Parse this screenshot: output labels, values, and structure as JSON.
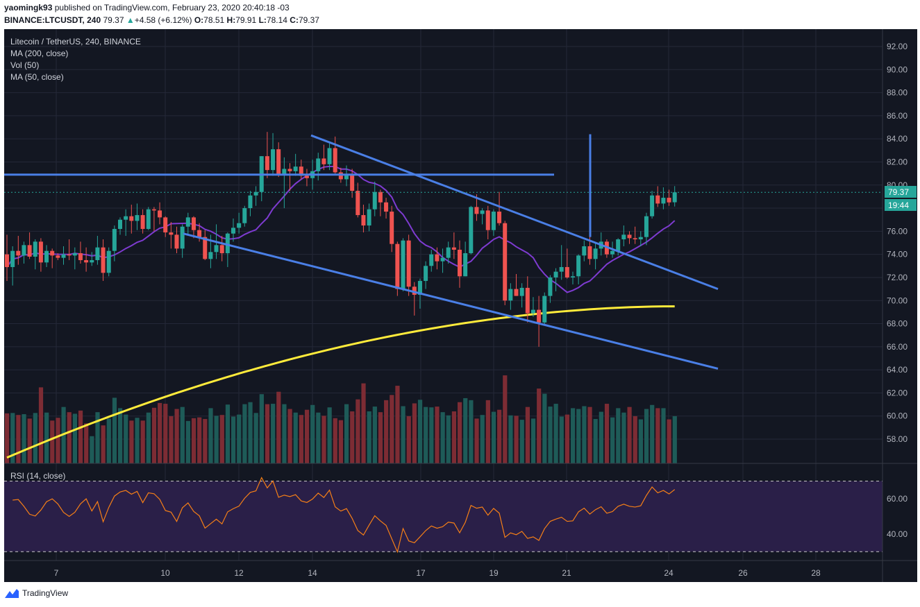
{
  "header": {
    "author": "yaomingk93",
    "published_text": "published on TradingView.com, February 23, 2020 20:40:18 -03",
    "symbol": "BINANCE:LTCUSDT, 240",
    "last": "79.37",
    "change": "+4.58 (+6.12%)",
    "o_label": "O:",
    "o_val": "78.51",
    "h_label": "H:",
    "h_val": "79.91",
    "l_label": "L:",
    "l_val": "78.14",
    "c_label": "C:",
    "c_val": "79.37"
  },
  "legend": {
    "title": "Litecoin / TetherUS, 240, BINANCE",
    "ma200": "MA (200, close)",
    "vol": "Vol (50)",
    "ma50": "MA (50, close)",
    "rsi": "RSI (14, close)"
  },
  "price_badge": "79.37",
  "timer_badge": "19:44",
  "footer": {
    "brand": "TradingView"
  },
  "colors": {
    "background": "#131722",
    "up": "#26a69a",
    "down": "#ef5350",
    "ma200": "#ffeb3b",
    "ma50": "#7e3bd1",
    "trendline": "#4a7fe6",
    "rsi_line": "#f57f17",
    "rsi_band": "#2a1f48"
  },
  "chart_data": {
    "type": "candlestick",
    "symbol": "LTCUSDT",
    "interval": "240",
    "x_ticks": [
      "7",
      "10",
      "12",
      "14",
      "17",
      "19",
      "21",
      "24",
      "26",
      "28"
    ],
    "price_ticks": [
      "92.00",
      "90.00",
      "88.00",
      "86.00",
      "84.00",
      "82.00",
      "80.00",
      "78.00",
      "76.00",
      "74.00",
      "72.00",
      "70.00",
      "68.00",
      "66.00",
      "64.00",
      "62.00",
      "60.00",
      "58.00"
    ],
    "rsi_ticks": [
      "60.00",
      "40.00"
    ],
    "ylim": [
      55.9,
      93.5
    ],
    "rsi_ylim": [
      25,
      80
    ],
    "rsi_levels": [
      70,
      30
    ],
    "candles": [
      [
        74.0,
        75.7,
        71.7,
        72.9,
        1250
      ],
      [
        72.9,
        74.7,
        71.3,
        74.3,
        1260
      ],
      [
        74.3,
        75.6,
        73.1,
        73.9,
        1210
      ],
      [
        73.9,
        75.1,
        73.2,
        74.8,
        1230
      ],
      [
        74.8,
        75.9,
        73.6,
        73.8,
        1120
      ],
      [
        73.8,
        75.3,
        72.7,
        75.1,
        1260
      ],
      [
        75.1,
        75.4,
        72.5,
        73.3,
        1900
      ],
      [
        73.3,
        74.8,
        72.9,
        74.3,
        1270
      ],
      [
        74.3,
        74.5,
        72.8,
        73.9,
        1070
      ],
      [
        73.9,
        74.1,
        73.5,
        73.7,
        1140
      ],
      [
        73.7,
        74.7,
        73.1,
        74.0,
        1410
      ],
      [
        74.0,
        75.3,
        73.5,
        73.9,
        1280
      ],
      [
        73.9,
        74.6,
        72.7,
        74.1,
        1240
      ],
      [
        74.1,
        75.1,
        73.2,
        73.5,
        1320
      ],
      [
        73.5,
        74.6,
        72.5,
        73.3,
        1000
      ],
      [
        73.3,
        74.2,
        73.0,
        73.5,
        680
      ],
      [
        73.5,
        75.6,
        73.1,
        74.6,
        1280
      ],
      [
        74.6,
        75.3,
        71.7,
        72.4,
        950
      ],
      [
        72.4,
        74.6,
        72.1,
        74.3,
        1120
      ],
      [
        74.3,
        76.5,
        73.4,
        76.2,
        1640
      ],
      [
        76.2,
        77.2,
        75.7,
        77.0,
        1380
      ],
      [
        77.0,
        77.9,
        75.6,
        77.3,
        1220
      ],
      [
        77.3,
        78.3,
        75.8,
        76.9,
        1070
      ],
      [
        76.9,
        78.4,
        76.1,
        77.4,
        1140
      ],
      [
        77.4,
        77.9,
        75.8,
        76.2,
        1070
      ],
      [
        76.2,
        78.1,
        76.1,
        77.9,
        1270
      ],
      [
        77.9,
        78.1,
        76.0,
        77.8,
        1390
      ],
      [
        77.8,
        78.5,
        76.6,
        77.2,
        1510
      ],
      [
        77.2,
        77.3,
        75.5,
        75.9,
        1490
      ],
      [
        75.9,
        76.8,
        74.5,
        75.7,
        1180
      ],
      [
        75.7,
        76.4,
        74.1,
        74.5,
        1360
      ],
      [
        74.5,
        76.6,
        73.7,
        76.4,
        1410
      ],
      [
        76.4,
        77.6,
        75.7,
        77.2,
        1060
      ],
      [
        77.2,
        77.3,
        75.4,
        76.1,
        1130
      ],
      [
        76.1,
        76.7,
        75.1,
        75.5,
        1150
      ],
      [
        75.5,
        76.1,
        73.5,
        73.6,
        1110
      ],
      [
        73.6,
        75.7,
        72.8,
        74.2,
        1380
      ],
      [
        74.2,
        76.6,
        73.6,
        74.8,
        1190
      ],
      [
        74.8,
        75.6,
        73.4,
        74.1,
        1210
      ],
      [
        74.1,
        75.9,
        72.9,
        75.8,
        1470
      ],
      [
        75.8,
        77.1,
        75.1,
        76.3,
        1170
      ],
      [
        76.3,
        77.6,
        75.8,
        76.7,
        1220
      ],
      [
        76.7,
        78.2,
        76.4,
        78.0,
        1480
      ],
      [
        78.0,
        79.5,
        77.3,
        79.1,
        1530
      ],
      [
        79.1,
        79.9,
        78.2,
        79.4,
        1260
      ],
      [
        79.4,
        82.5,
        78.6,
        82.5,
        1730
      ],
      [
        82.5,
        84.6,
        80.6,
        81.3,
        1480
      ],
      [
        81.3,
        84.5,
        80.8,
        83.1,
        1490
      ],
      [
        83.1,
        83.7,
        80.7,
        80.9,
        1790
      ],
      [
        80.9,
        82.4,
        78.0,
        81.4,
        1480
      ],
      [
        81.4,
        81.9,
        79.5,
        81.2,
        1360
      ],
      [
        81.2,
        82.7,
        80.8,
        81.6,
        1270
      ],
      [
        81.6,
        82.2,
        80.5,
        80.8,
        1210
      ],
      [
        80.8,
        81.4,
        79.9,
        80.6,
        1340
      ],
      [
        80.6,
        82.2,
        79.6,
        81.2,
        1460
      ],
      [
        81.2,
        82.8,
        80.4,
        82.3,
        1270
      ],
      [
        82.3,
        83.5,
        81.3,
        81.8,
        1190
      ],
      [
        81.8,
        83.6,
        81.3,
        83.2,
        1400
      ],
      [
        83.2,
        84.2,
        81.0,
        81.1,
        1130
      ],
      [
        81.1,
        81.5,
        80.2,
        80.5,
        1080
      ],
      [
        80.5,
        81.7,
        79.9,
        80.9,
        1480
      ],
      [
        80.9,
        81.4,
        78.9,
        79.5,
        1300
      ],
      [
        79.5,
        80.2,
        77.2,
        77.4,
        1600
      ],
      [
        77.4,
        78.3,
        75.9,
        76.5,
        2000
      ],
      [
        76.5,
        78.4,
        76.0,
        77.9,
        1300
      ],
      [
        77.9,
        80.3,
        77.3,
        79.4,
        1420
      ],
      [
        79.4,
        79.6,
        77.3,
        78.5,
        1280
      ],
      [
        78.5,
        78.9,
        77.1,
        77.7,
        1580
      ],
      [
        77.7,
        78.2,
        74.2,
        74.9,
        1710
      ],
      [
        74.9,
        75.1,
        70.4,
        71.0,
        1940
      ],
      [
        71.0,
        75.4,
        70.8,
        75.2,
        1430
      ],
      [
        75.2,
        75.7,
        70.4,
        71.2,
        1180
      ],
      [
        71.2,
        71.6,
        68.7,
        70.5,
        1500
      ],
      [
        70.5,
        71.9,
        69.3,
        71.7,
        1590
      ],
      [
        71.7,
        73.4,
        71.0,
        73.0,
        1410
      ],
      [
        73.0,
        74.4,
        72.5,
        74.0,
        1400
      ],
      [
        74.0,
        74.6,
        72.7,
        73.4,
        1420
      ],
      [
        73.4,
        74.5,
        72.4,
        73.7,
        1280
      ],
      [
        73.7,
        75.1,
        73.2,
        74.6,
        1200
      ],
      [
        74.6,
        75.9,
        73.6,
        74.4,
        1300
      ],
      [
        74.4,
        75.2,
        71.1,
        72.1,
        1530
      ],
      [
        72.1,
        75.1,
        72.1,
        74.1,
        1630
      ],
      [
        74.1,
        78.2,
        74.0,
        78.1,
        1580
      ],
      [
        78.1,
        79.2,
        76.9,
        77.5,
        1120
      ],
      [
        77.5,
        78.0,
        76.6,
        77.8,
        1210
      ],
      [
        77.8,
        78.2,
        75.3,
        76.1,
        1580
      ],
      [
        76.1,
        77.9,
        75.6,
        77.7,
        1290
      ],
      [
        77.7,
        79.4,
        76.5,
        76.7,
        1340
      ],
      [
        76.7,
        76.9,
        69.6,
        70.0,
        2200
      ],
      [
        70.0,
        71.5,
        69.2,
        71.0,
        1200
      ],
      [
        71.0,
        72.3,
        70.4,
        70.4,
        1190
      ],
      [
        70.4,
        71.5,
        69.4,
        71.1,
        1090
      ],
      [
        71.1,
        72.1,
        68.1,
        68.9,
        1410
      ],
      [
        68.9,
        70.3,
        68.6,
        69.2,
        1120
      ],
      [
        69.2,
        70.4,
        66.0,
        68.1,
        1870
      ],
      [
        68.1,
        70.7,
        67.9,
        70.4,
        1740
      ],
      [
        70.4,
        72.2,
        69.8,
        72.0,
        1420
      ],
      [
        72.0,
        72.8,
        70.8,
        72.5,
        1490
      ],
      [
        72.5,
        74.8,
        71.8,
        72.9,
        1170
      ],
      [
        72.9,
        74.5,
        71.9,
        72.0,
        1220
      ],
      [
        72.0,
        72.5,
        71.4,
        72.1,
        1380
      ],
      [
        72.1,
        74.0,
        71.4,
        73.9,
        1360
      ],
      [
        73.9,
        75.2,
        73.4,
        74.7,
        1430
      ],
      [
        74.7,
        75.6,
        73.1,
        73.6,
        1410
      ],
      [
        73.6,
        75.0,
        72.7,
        74.5,
        1110
      ],
      [
        74.5,
        75.9,
        73.9,
        75.1,
        1290
      ],
      [
        75.1,
        75.3,
        73.7,
        74.0,
        1490
      ],
      [
        74.0,
        75.1,
        73.7,
        74.3,
        1150
      ],
      [
        74.3,
        75.4,
        73.9,
        75.3,
        1380
      ],
      [
        75.3,
        76.5,
        74.7,
        75.7,
        1270
      ],
      [
        75.7,
        76.0,
        74.9,
        75.4,
        1410
      ],
      [
        75.4,
        76.4,
        74.9,
        75.3,
        1180
      ],
      [
        75.3,
        76.0,
        74.7,
        75.5,
        1100
      ],
      [
        75.5,
        77.6,
        74.8,
        77.3,
        1360
      ],
      [
        77.3,
        79.5,
        77.1,
        79.1,
        1460
      ],
      [
        79.1,
        79.9,
        78.1,
        78.4,
        1380
      ],
      [
        78.4,
        79.8,
        77.9,
        78.9,
        1380
      ],
      [
        78.9,
        79.6,
        78.2,
        78.5,
        1100
      ],
      [
        78.51,
        79.91,
        78.14,
        79.37,
        1180
      ]
    ]
  }
}
